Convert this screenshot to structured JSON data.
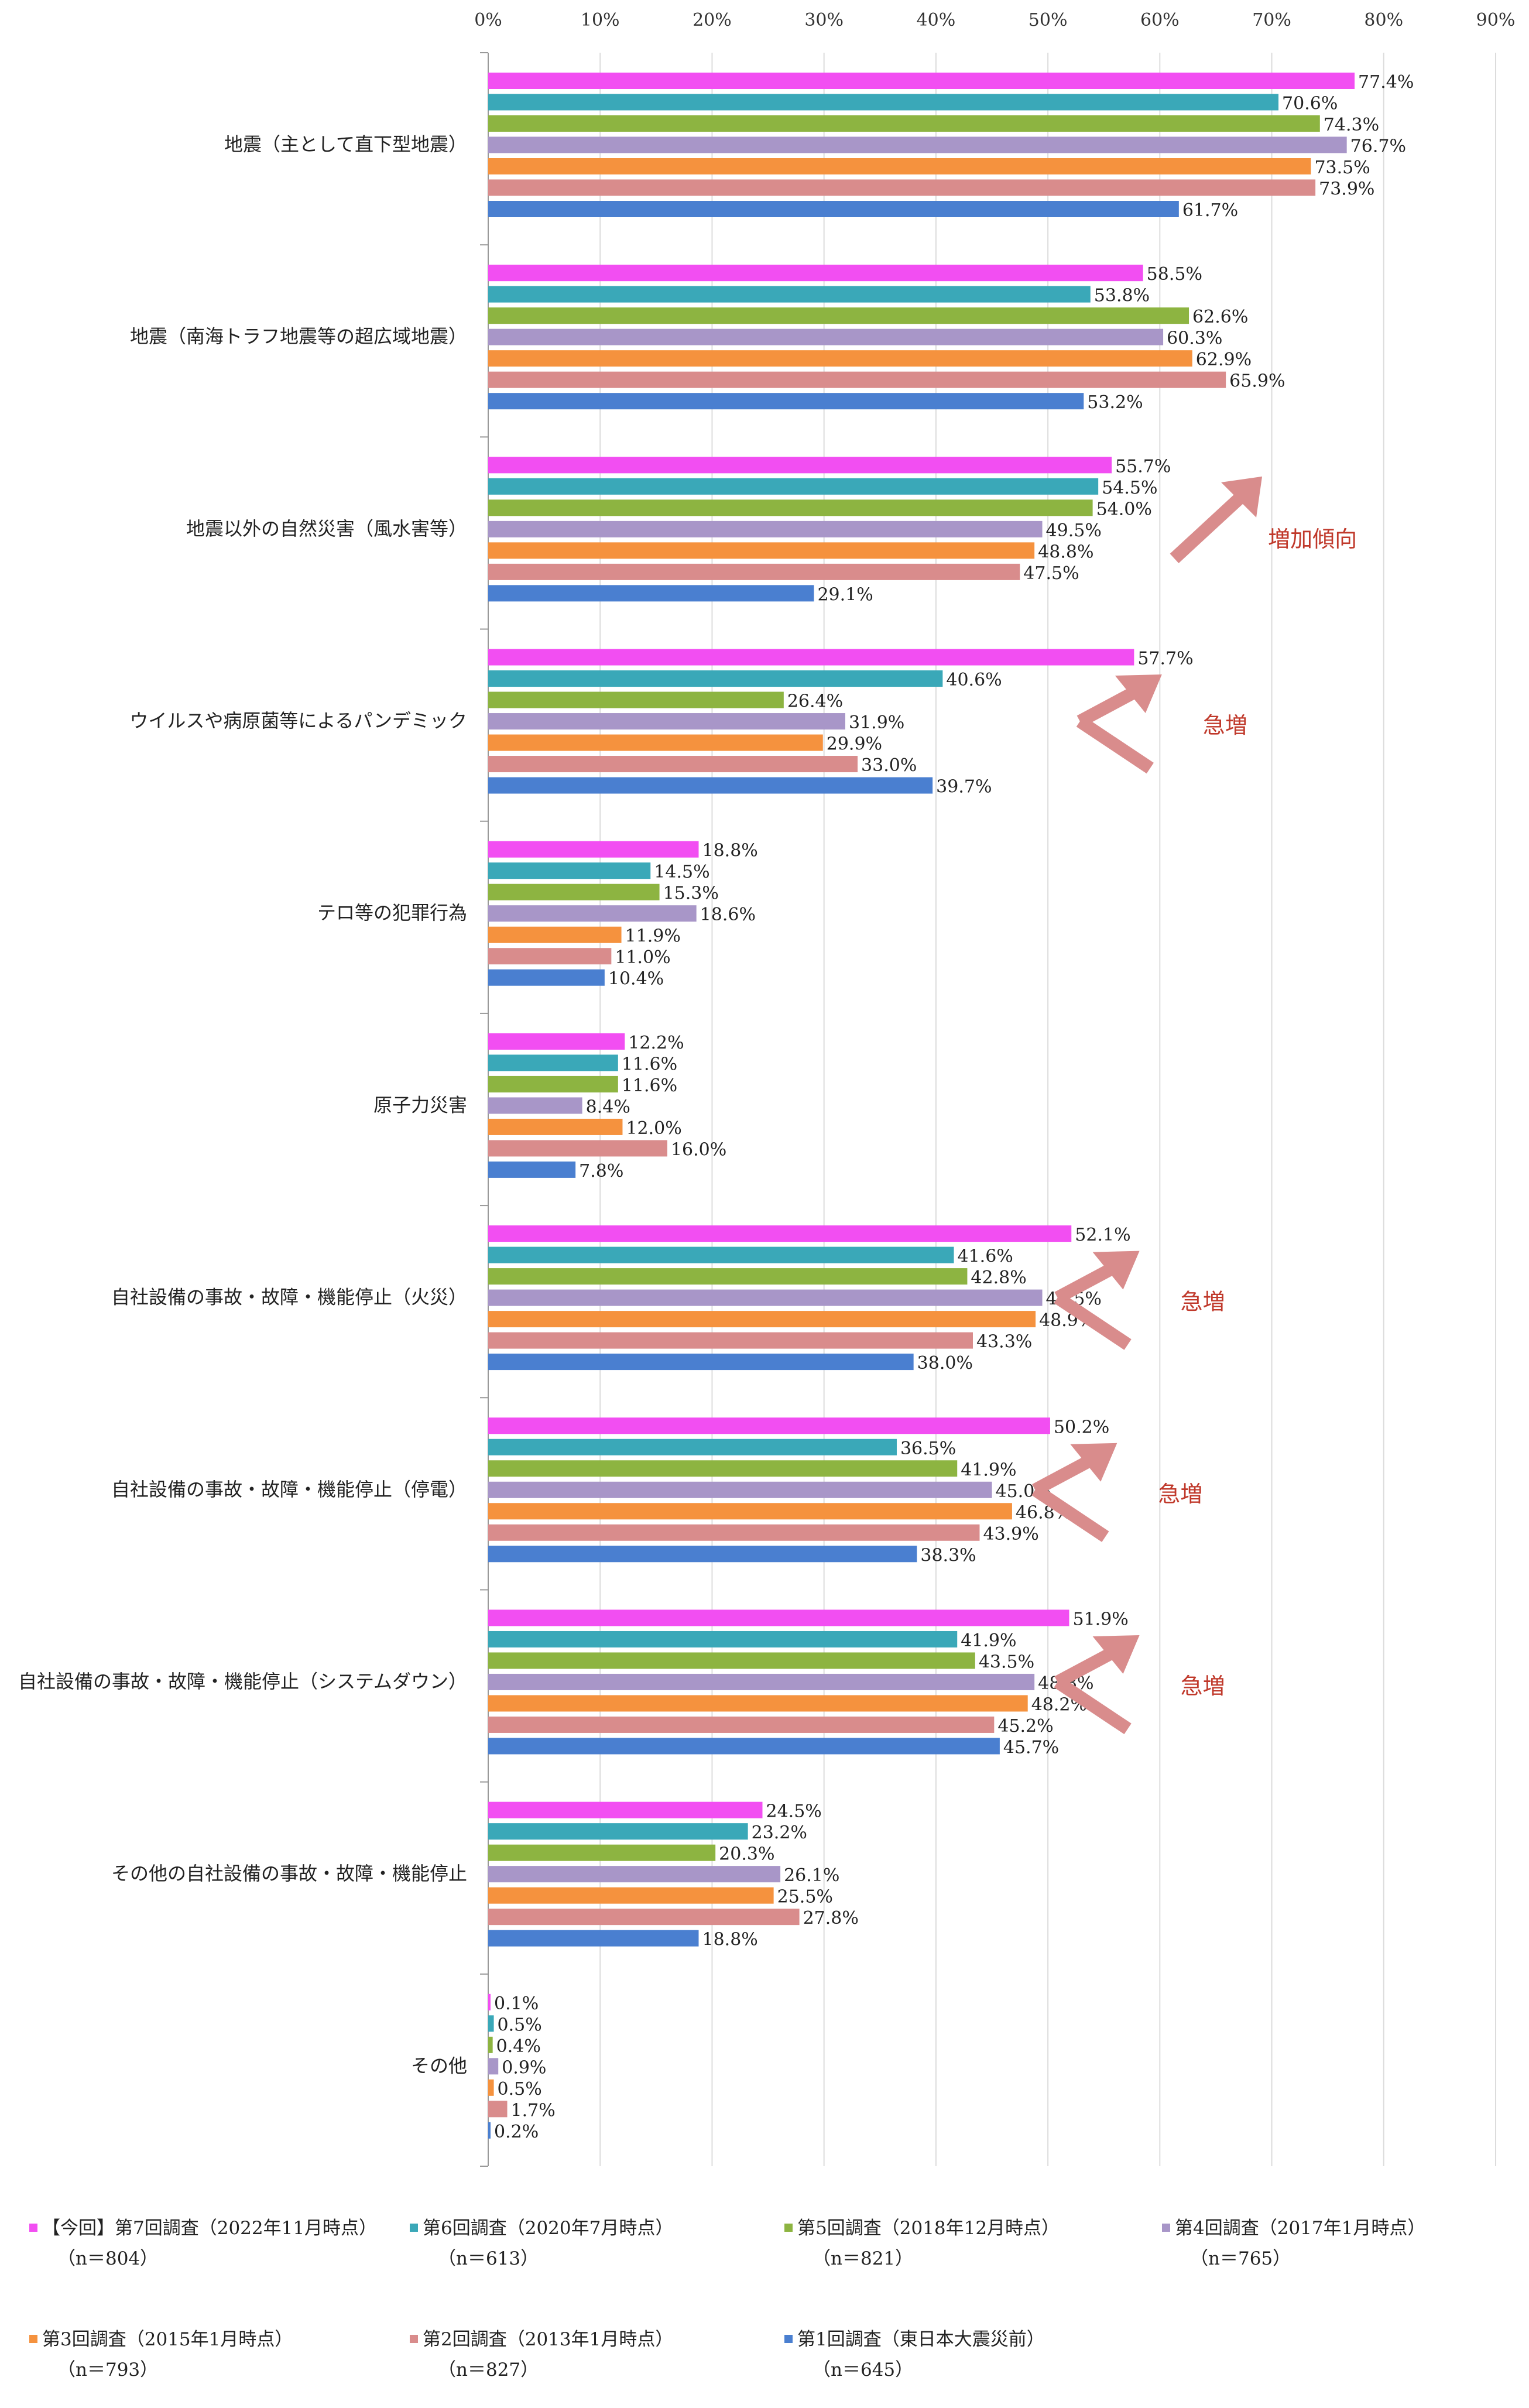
{
  "chart_data": {
    "type": "bar",
    "orientation": "horizontal",
    "xlim": [
      0,
      90
    ],
    "x_ticks": [
      "0%",
      "10%",
      "20%",
      "30%",
      "40%",
      "50%",
      "60%",
      "70%",
      "80%",
      "90%"
    ],
    "grid": true,
    "categories": [
      "地震（主として直下型地震）",
      "地震（南海トラフ地震等の超広域地震）",
      "地震以外の自然災害（風水害等）",
      "ウイルスや病原菌等によるパンデミック",
      "テロ等の犯罪行為",
      "原子力災害",
      "自社設備の事故・故障・機能停止（火災）",
      "自社設備の事故・故障・機能停止（停電）",
      "自社設備の事故・故障・機能停止（システムダウン）",
      "その他の自社設備の事故・故障・機能停止",
      "その他"
    ],
    "series": [
      {
        "name": "【今回】第7回調査（2022年11月時点）",
        "n": "（n＝804）",
        "color": "#f24ef2",
        "values": [
          77.4,
          58.5,
          55.7,
          57.7,
          18.8,
          12.2,
          52.1,
          50.2,
          51.9,
          24.5,
          0.1
        ],
        "labels": [
          "77.4%",
          "58.5%",
          "55.7%",
          "57.7%",
          "18.8%",
          "12.2%",
          "52.1%",
          "50.2%",
          "51.9%",
          "24.5%",
          "0.1%"
        ]
      },
      {
        "name": "第6回調査（2020年7月時点）",
        "n": "（n＝613）",
        "color": "#3aa8b8",
        "values": [
          70.6,
          53.8,
          54.5,
          40.6,
          14.5,
          11.6,
          41.6,
          36.5,
          41.9,
          23.2,
          0.5
        ],
        "labels": [
          "70.6%",
          "53.8%",
          "54.5%",
          "40.6%",
          "14.5%",
          "11.6%",
          "41.6%",
          "36.5%",
          "41.9%",
          "23.2%",
          "0.5%"
        ]
      },
      {
        "name": "第5回調査（2018年12月時点）",
        "n": "（n＝821）",
        "color": "#8db441",
        "values": [
          74.3,
          62.6,
          54.0,
          26.4,
          15.3,
          11.6,
          42.8,
          41.9,
          43.5,
          20.3,
          0.4
        ],
        "labels": [
          "74.3%",
          "62.6%",
          "54.0%",
          "26.4%",
          "15.3%",
          "11.6%",
          "42.8%",
          "41.9%",
          "43.5%",
          "20.3%",
          "0.4%"
        ]
      },
      {
        "name": "第4回調査（2017年1月時点）",
        "n": "（n＝765）",
        "color": "#a896c8",
        "values": [
          76.7,
          60.3,
          49.5,
          31.9,
          18.6,
          8.4,
          49.5,
          45.0,
          48.8,
          26.1,
          0.9
        ],
        "labels": [
          "76.7%",
          "60.3%",
          "49.5%",
          "31.9%",
          "18.6%",
          "8.4%",
          "49.5%",
          "45.0%",
          "48.8%",
          "26.1%",
          "0.9%"
        ]
      },
      {
        "name": "第3回調査（2015年1月時点）",
        "n": "（n＝793）",
        "color": "#f5923e",
        "values": [
          73.5,
          62.9,
          48.8,
          29.9,
          11.9,
          12.0,
          48.9,
          46.8,
          48.2,
          25.5,
          0.5
        ],
        "labels": [
          "73.5%",
          "62.9%",
          "48.8%",
          "29.9%",
          "11.9%",
          "12.0%",
          "48.9%",
          "46.8%",
          "48.2%",
          "25.5%",
          "0.5%"
        ]
      },
      {
        "name": "第2回調査（2013年1月時点）",
        "n": "（n＝827）",
        "color": "#d98c8c",
        "values": [
          73.9,
          65.9,
          47.5,
          33.0,
          11.0,
          16.0,
          43.3,
          43.9,
          45.2,
          27.8,
          1.7
        ],
        "labels": [
          "73.9%",
          "65.9%",
          "47.5%",
          "33.0%",
          "11.0%",
          "16.0%",
          "43.3%",
          "43.9%",
          "45.2%",
          "27.8%",
          "1.7%"
        ]
      },
      {
        "name": "第1回調査（東日本大震災前）",
        "n": "（n＝645）",
        "color": "#4a7fd0",
        "values": [
          61.7,
          53.2,
          29.1,
          39.7,
          10.4,
          7.8,
          38.0,
          38.3,
          45.7,
          18.8,
          0.2
        ],
        "labels": [
          "61.7%",
          "53.2%",
          "29.1%",
          "39.7%",
          "10.4%",
          "7.8%",
          "38.0%",
          "38.3%",
          "45.7%",
          "18.8%",
          "0.2%"
        ]
      }
    ],
    "annotations": [
      {
        "text": "増加傾向",
        "category_index": 2,
        "x": 66,
        "shape": "up-arrow"
      },
      {
        "text": "急増",
        "category_index": 3,
        "x": 56,
        "shape": "chevron"
      },
      {
        "text": "急増",
        "category_index": 6,
        "x": 54,
        "shape": "chevron"
      },
      {
        "text": "急増",
        "category_index": 7,
        "x": 52,
        "shape": "chevron"
      },
      {
        "text": "急増",
        "category_index": 8,
        "x": 54,
        "shape": "chevron"
      }
    ],
    "annotation_color": "#d98c8c"
  }
}
